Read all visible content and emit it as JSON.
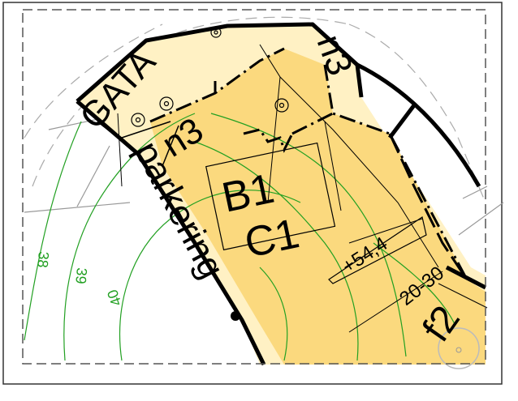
{
  "labels": {
    "street": "GATA",
    "parking": "parkering",
    "n3_left": "n3",
    "n3_right": "n3",
    "zone_b": "B1",
    "zone_c": "C1",
    "elevation": "+54,4",
    "storeys": "20-30",
    "f2": "f2"
  },
  "contours": {
    "c38": "38",
    "c39": "39",
    "c40": "40"
  },
  "colors": {
    "zone_fill": "#fbd97e",
    "street_fill": "#fff1c4",
    "contour": "#22a022",
    "frame": "#000000"
  }
}
